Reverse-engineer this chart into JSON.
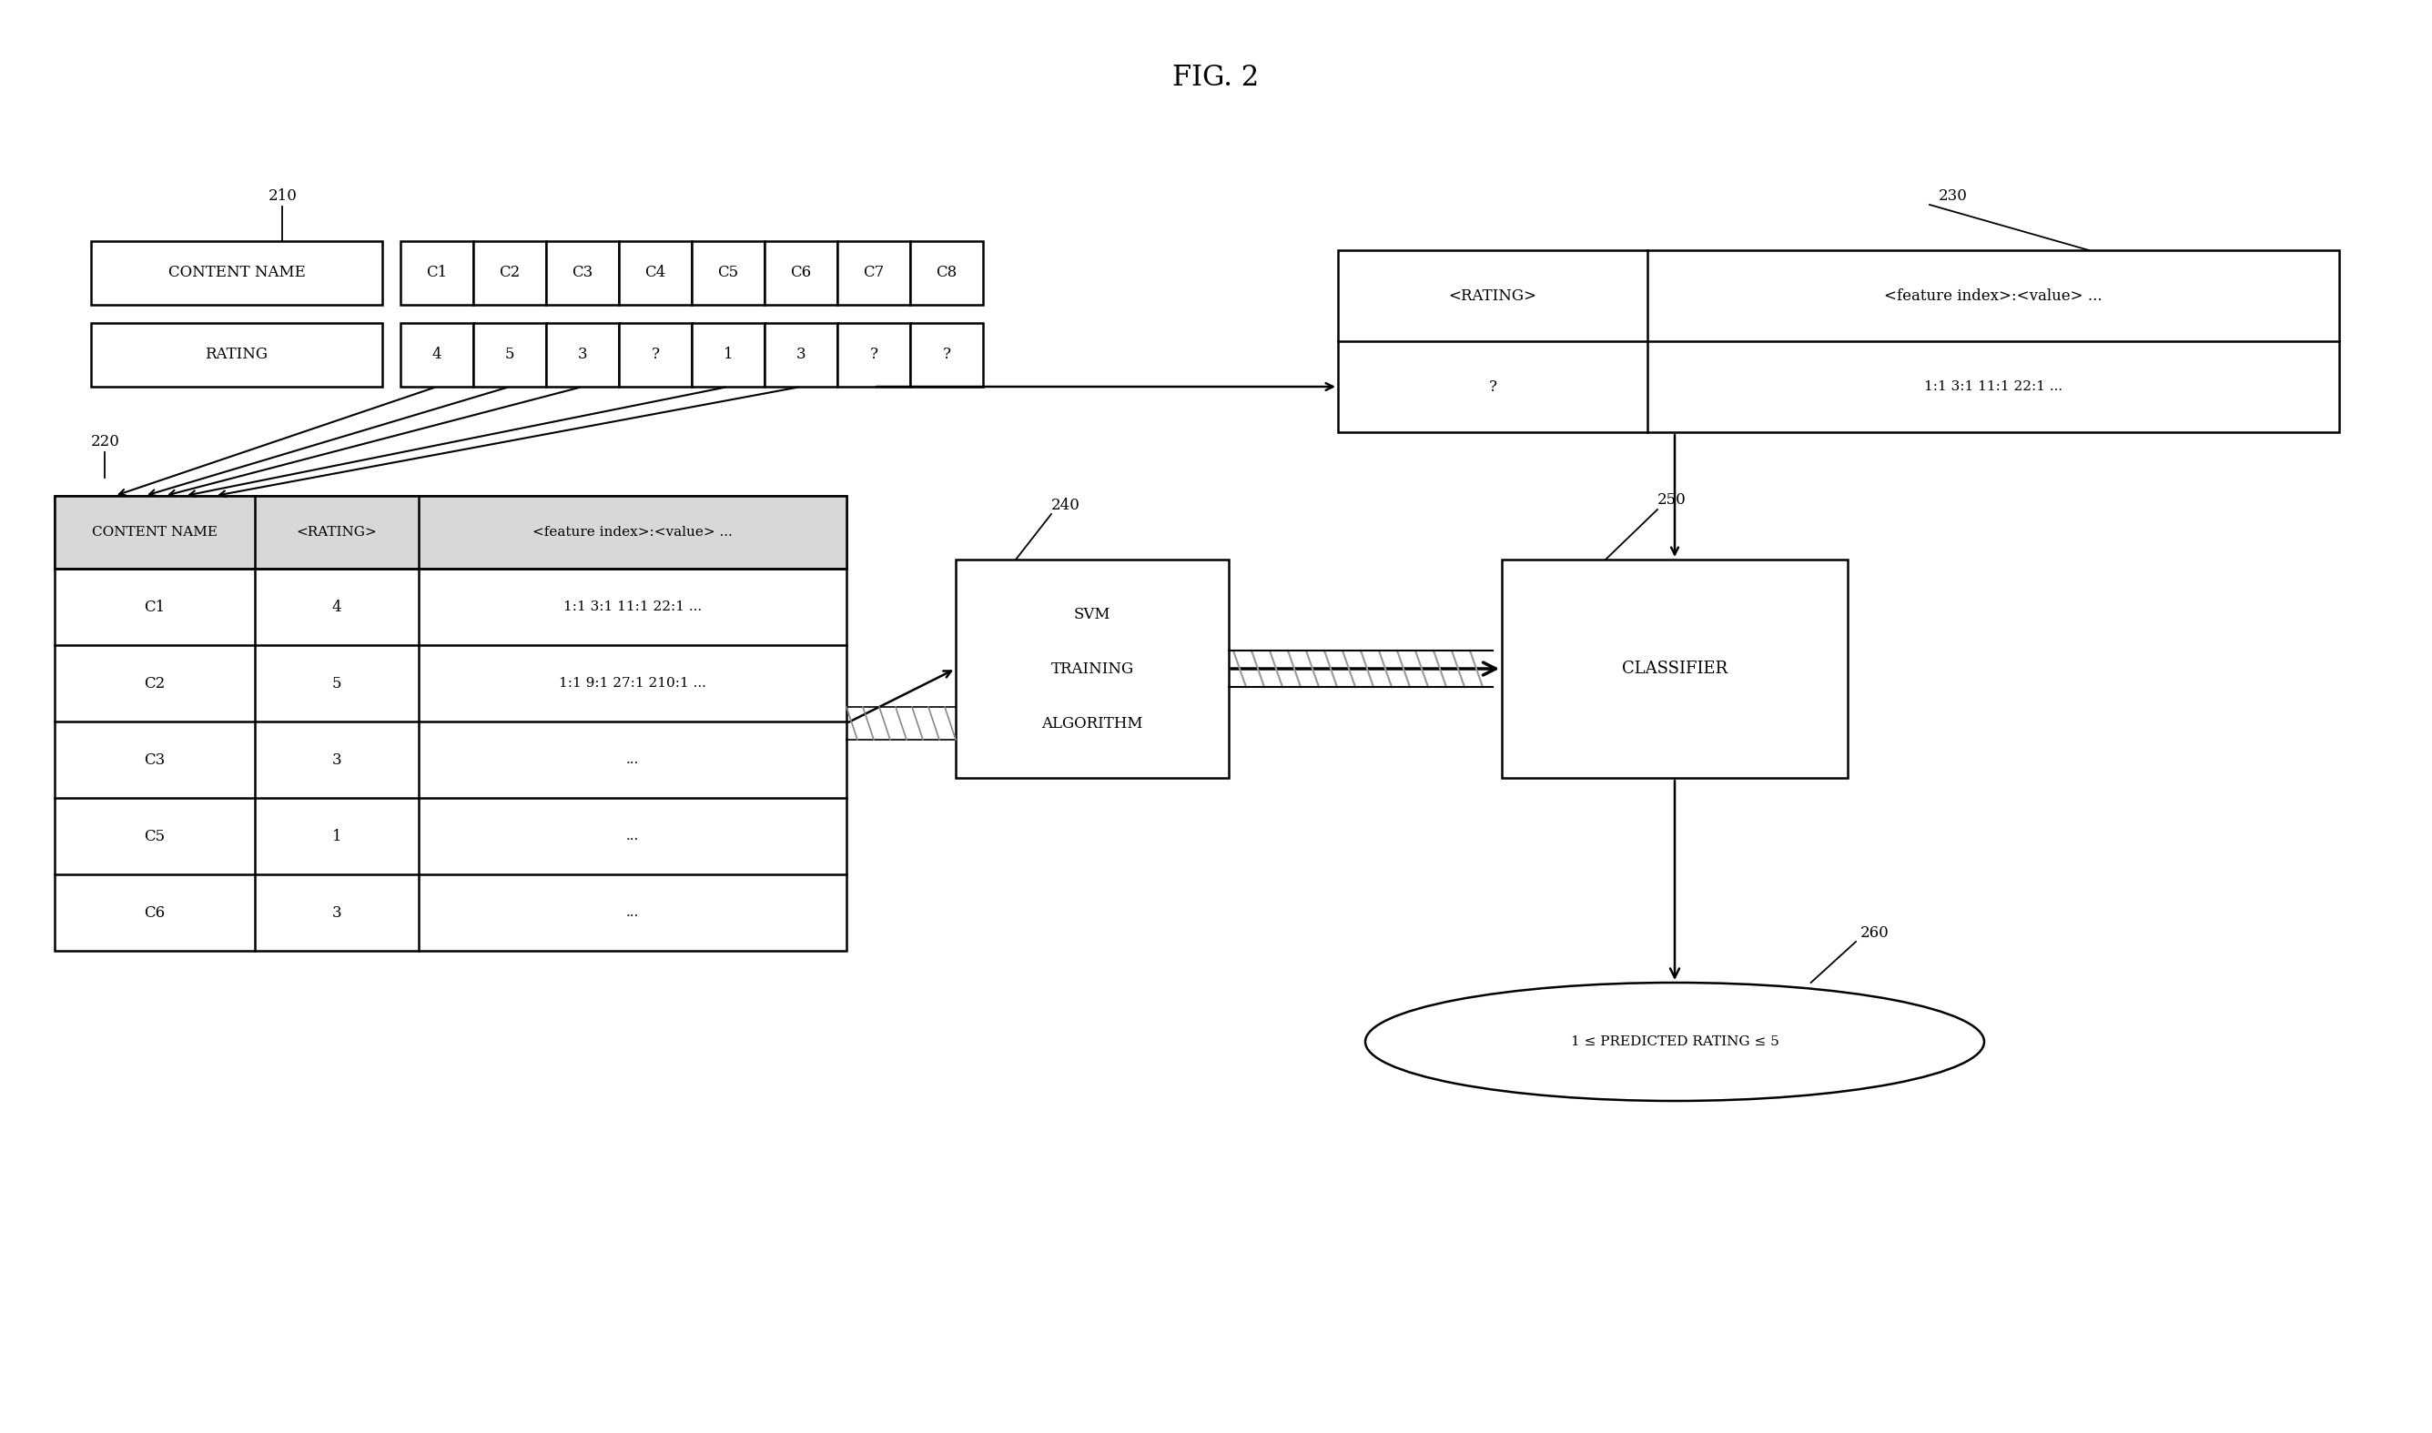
{
  "title": "FIG. 2",
  "bg_color": "#ffffff",
  "label_210": "210",
  "label_220": "220",
  "label_230": "230",
  "label_240": "240",
  "label_250": "250",
  "label_260": "260",
  "content_name_label": "CONTENT NAME",
  "rating_label": "RATING",
  "content_cols": [
    "C1",
    "C2",
    "C3",
    "C4",
    "C5",
    "C6",
    "C7",
    "C8"
  ],
  "rating_vals": [
    "4",
    "5",
    "3",
    "?",
    "1",
    "3",
    "?",
    "?"
  ],
  "table_headers": [
    "CONTENT NAME",
    "<RATING>",
    "<feature index>:<value> ..."
  ],
  "table_rows": [
    [
      "C1",
      "4",
      "1:1 3:1 11:1 22:1 ..."
    ],
    [
      "C2",
      "5",
      "1:1 9:1 27:1 210:1 ..."
    ],
    [
      "C3",
      "3",
      "..."
    ],
    [
      "C5",
      "1",
      "..."
    ],
    [
      "C6",
      "3",
      "..."
    ]
  ],
  "box_230_header": [
    "<RATING>",
    "<feature index>:<value> ..."
  ],
  "box_230_row": [
    "?",
    "1:1 3:1 11:1 22:1 ..."
  ],
  "svm_label": [
    "SVM",
    "TRAINING",
    "ALGORITHM"
  ],
  "classifier_label": "CLASSIFIER",
  "ellipse_label": "1 ≤ PREDICTED RATING ≤ 5",
  "lw": 1.8,
  "fs_title": 20,
  "fs_label": 13,
  "fs_small": 12,
  "fs_ref": 12
}
